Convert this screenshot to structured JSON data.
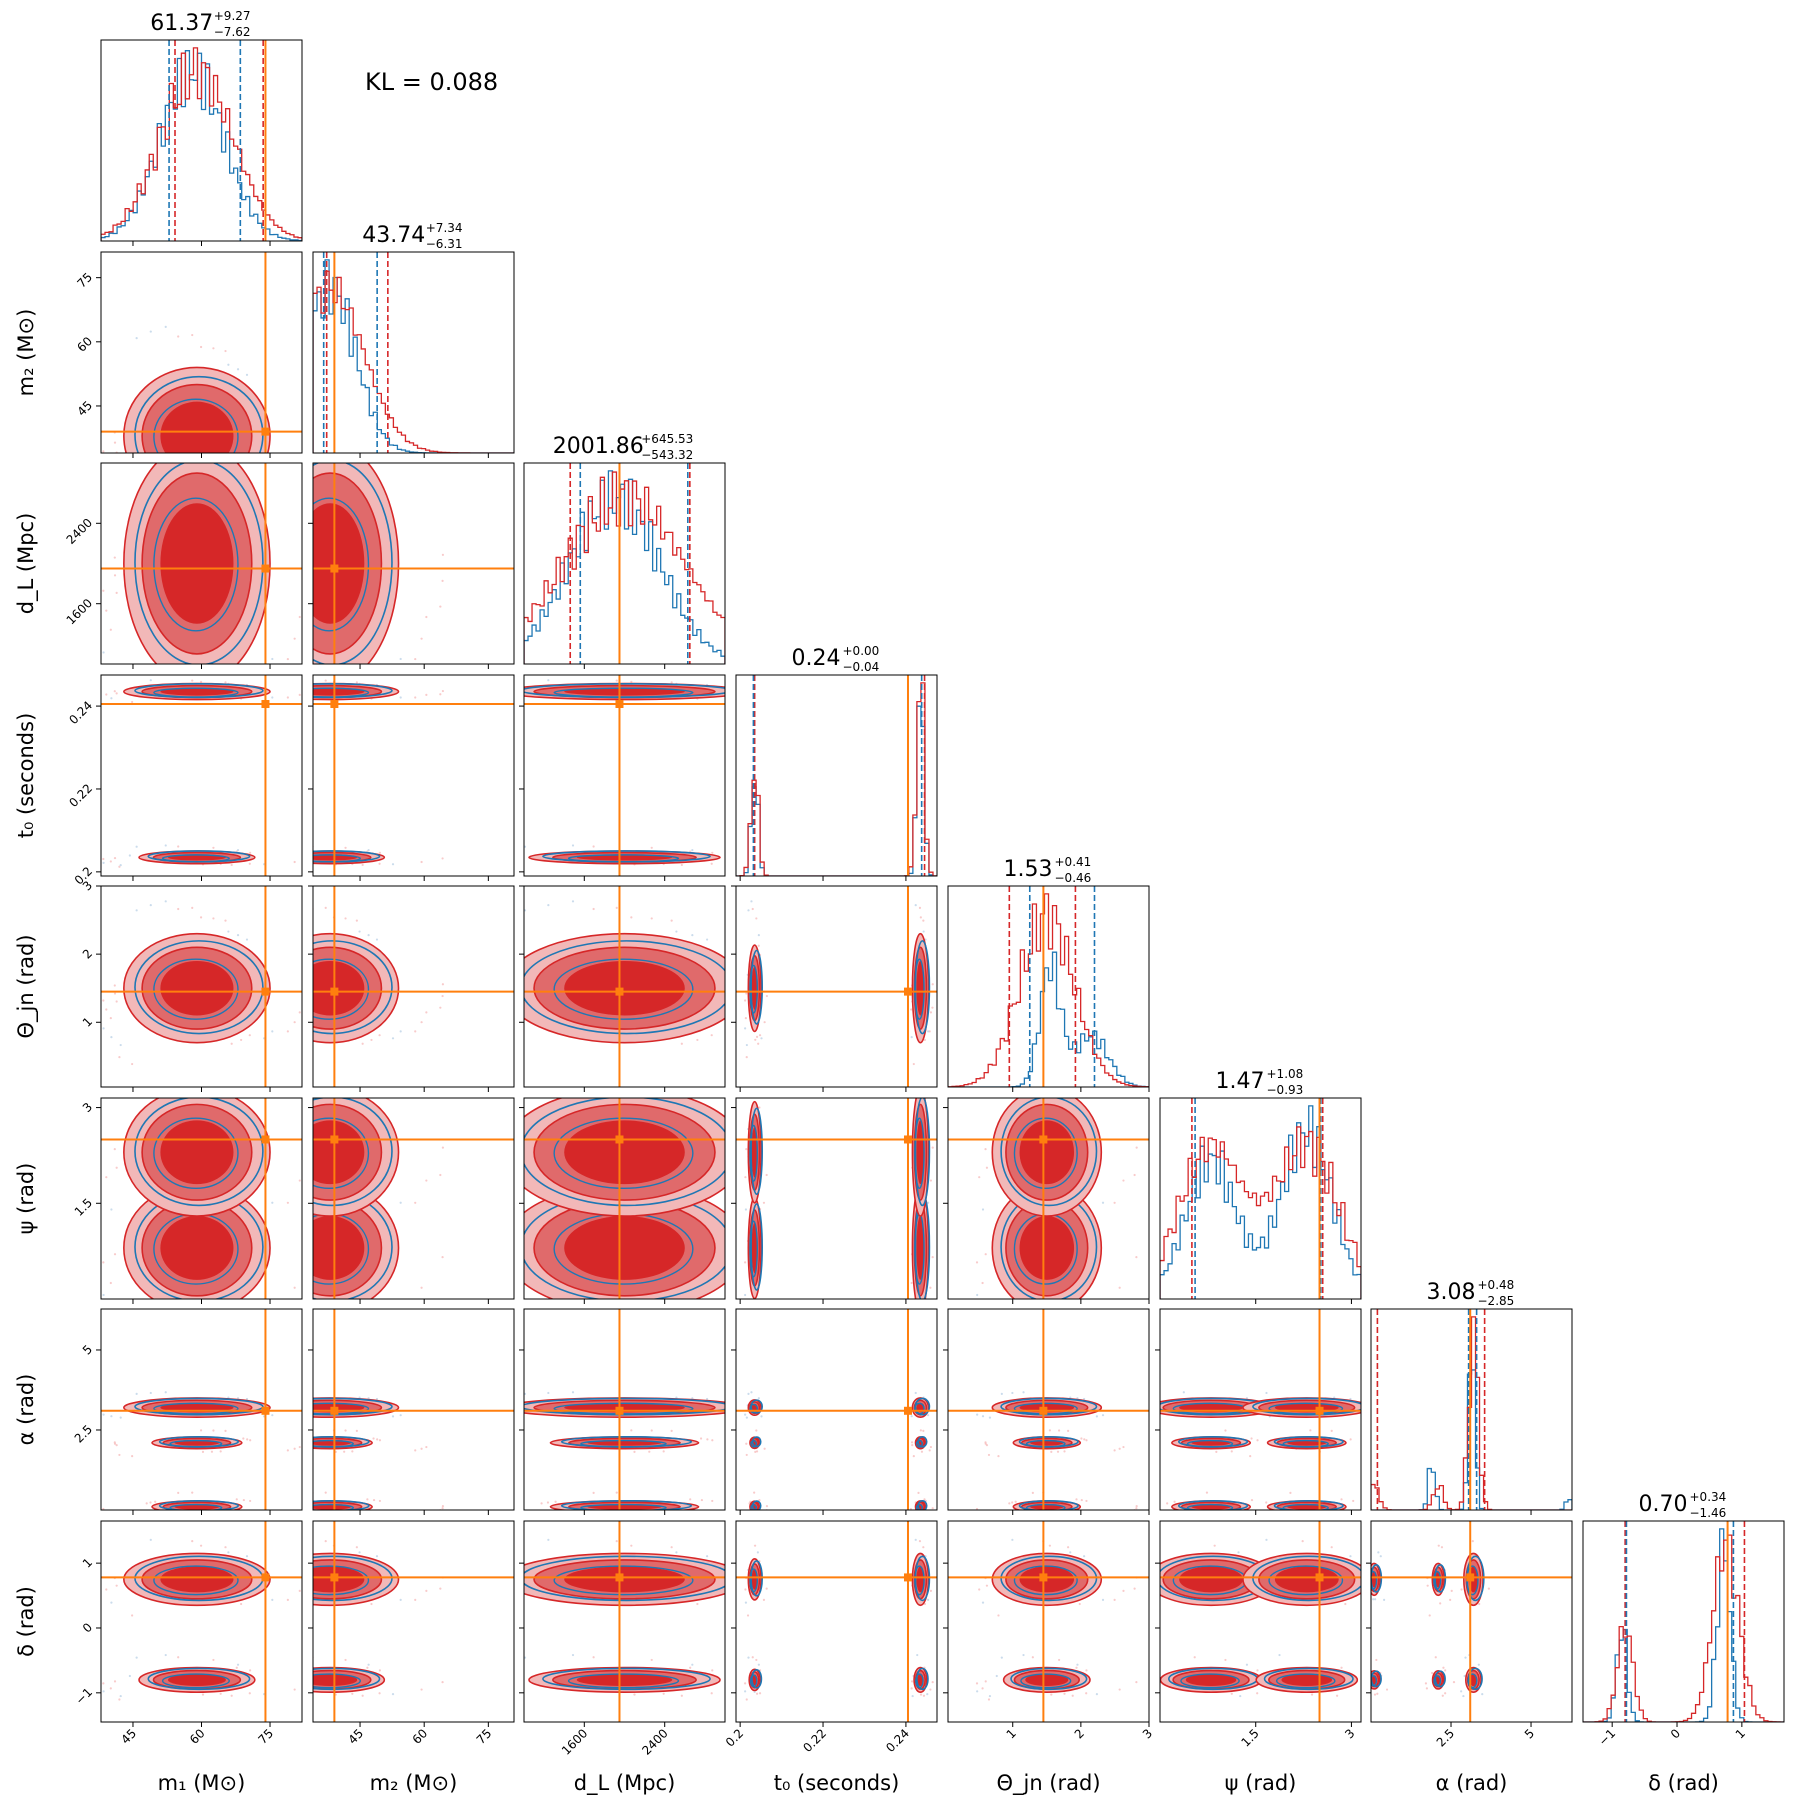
{
  "chart_data": {
    "type": "corner",
    "annotation": "KL = 0.088",
    "colors": {
      "series_a": "#d62728",
      "series_b": "#1f77b4",
      "truth": "#ff7f0e"
    },
    "parameters": [
      {
        "key": "m1",
        "label": "m₁ (M⊙)",
        "range": [
          38,
          82
        ],
        "ticks": [
          45,
          60,
          75
        ],
        "truth": 74,
        "summary": {
          "median": "61.37",
          "plus": "+9.27",
          "minus": "−7.62"
        },
        "quantiles_a": [
          54.2,
          73.5
        ],
        "quantiles_b": [
          52.9,
          68.5
        ],
        "peaks_a": [
          {
            "m": 59,
            "s": 8,
            "w": 1
          }
        ],
        "peaks_b": [
          {
            "m": 58,
            "s": 7,
            "w": 1
          }
        ]
      },
      {
        "key": "m2",
        "label": "m₂ (M⊙)",
        "range": [
          34,
          81
        ],
        "ticks": [
          45,
          60,
          75
        ],
        "truth": 39,
        "summary": {
          "median": "43.74",
          "plus": "+7.34",
          "minus": "−6.31"
        },
        "quantiles_a": [
          37.2,
          51.5
        ],
        "quantiles_b": [
          36.5,
          49.0
        ],
        "peaks_a": [
          {
            "m": 38,
            "s": 8,
            "w": 1
          }
        ],
        "peaks_b": [
          {
            "m": 38,
            "s": 6,
            "w": 1
          }
        ]
      },
      {
        "key": "dL",
        "label": "d_L (Mpc)",
        "range": [
          1000,
          3000
        ],
        "ticks": [
          1600,
          2400
        ],
        "truth": 1950,
        "summary": {
          "median": "2001.86",
          "plus": "+645.53",
          "minus": "−543.32"
        },
        "quantiles_a": [
          1460,
          2650
        ],
        "quantiles_b": [
          1560,
          2630
        ],
        "peaks_a": [
          {
            "m": 2000,
            "s": 600,
            "w": 1
          }
        ],
        "peaks_b": [
          {
            "m": 1900,
            "s": 450,
            "w": 1
          }
        ]
      },
      {
        "key": "t0",
        "label": "t₀ (seconds)",
        "range": [
          0.199,
          0.2475
        ],
        "ticks": [
          0.2,
          0.22,
          0.24
        ],
        "truth": 0.2405,
        "summary": {
          "median": "0.24",
          "plus": "+0.00",
          "minus": "−0.04"
        },
        "quantiles_a": [
          0.2035,
          0.2445
        ],
        "quantiles_b": [
          0.2032,
          0.2438
        ],
        "peaks_a": [
          {
            "m": 0.2035,
            "s": 0.0009,
            "w": 0.35
          },
          {
            "m": 0.2435,
            "s": 0.0009,
            "w": 0.65
          }
        ],
        "peaks_b": [
          {
            "m": 0.2035,
            "s": 0.0008,
            "w": 0.35
          },
          {
            "m": 0.2435,
            "s": 0.0008,
            "w": 0.65
          }
        ]
      },
      {
        "key": "theta_jn",
        "label": "Θ_jn (rad)",
        "range": [
          0.05,
          3.0
        ],
        "ticks": [
          1,
          2,
          3
        ],
        "truth": 1.45,
        "summary": {
          "median": "1.53",
          "plus": "+0.41",
          "minus": "−0.46"
        },
        "quantiles_a": [
          0.95,
          1.92
        ],
        "quantiles_b": [
          1.25,
          2.2
        ],
        "peaks_a": [
          {
            "m": 1.5,
            "s": 0.4,
            "w": 1
          }
        ],
        "peaks_b": [
          {
            "m": 1.55,
            "s": 0.15,
            "w": 0.7
          },
          {
            "m": 2.15,
            "s": 0.25,
            "w": 0.3
          }
        ]
      },
      {
        "key": "psi",
        "label": "ψ (rad)",
        "range": [
          0.0,
          3.15
        ],
        "ticks": [
          1.5,
          3.0
        ],
        "truth": 2.5,
        "summary": {
          "median": "1.47",
          "plus": "+1.08",
          "minus": "−0.93"
        },
        "quantiles_a": [
          0.5,
          2.55
        ],
        "quantiles_b": [
          0.55,
          2.52
        ],
        "peaks_a": [
          {
            "m": 0.8,
            "s": 0.5,
            "w": 0.5
          },
          {
            "m": 2.3,
            "s": 0.5,
            "w": 0.5
          }
        ],
        "peaks_b": [
          {
            "m": 0.8,
            "s": 0.4,
            "w": 0.45
          },
          {
            "m": 2.3,
            "s": 0.4,
            "w": 0.55
          }
        ]
      },
      {
        "key": "alpha",
        "label": "α (rad)",
        "range": [
          0.0,
          6.28
        ],
        "ticks": [
          2.5,
          5.0
        ],
        "truth": 3.1,
        "summary": {
          "median": "3.08",
          "plus": "+0.48",
          "minus": "−2.85"
        },
        "quantiles_a": [
          0.2,
          3.55
        ],
        "quantiles_b": [
          3.05,
          3.3
        ],
        "peaks_a": [
          {
            "m": 3.2,
            "s": 0.15,
            "w": 0.7
          },
          {
            "m": 0.1,
            "s": 0.15,
            "w": 0.1
          },
          {
            "m": 2.1,
            "s": 0.15,
            "w": 0.1
          }
        ],
        "peaks_b": [
          {
            "m": 3.15,
            "s": 0.1,
            "w": 0.7
          },
          {
            "m": 1.9,
            "s": 0.1,
            "w": 0.2
          },
          {
            "m": 6.2,
            "s": 0.1,
            "w": 0.05
          }
        ]
      },
      {
        "key": "delta",
        "label": "δ (rad)",
        "range": [
          -1.45,
          1.65
        ],
        "ticks": [
          -1,
          0,
          1
        ],
        "truth": 0.78,
        "summary": {
          "median": "0.70",
          "plus": "+0.34",
          "minus": "−1.46"
        },
        "quantiles_a": [
          -0.8,
          1.04
        ],
        "quantiles_b": [
          -0.78,
          0.87
        ],
        "peaks_a": [
          {
            "m": -0.8,
            "s": 0.12,
            "w": 0.35
          },
          {
            "m": 0.75,
            "s": 0.2,
            "w": 0.65
          }
        ],
        "peaks_b": [
          {
            "m": -0.85,
            "s": 0.08,
            "w": 0.35
          },
          {
            "m": 0.72,
            "s": 0.1,
            "w": 0.65
          }
        ]
      }
    ]
  }
}
